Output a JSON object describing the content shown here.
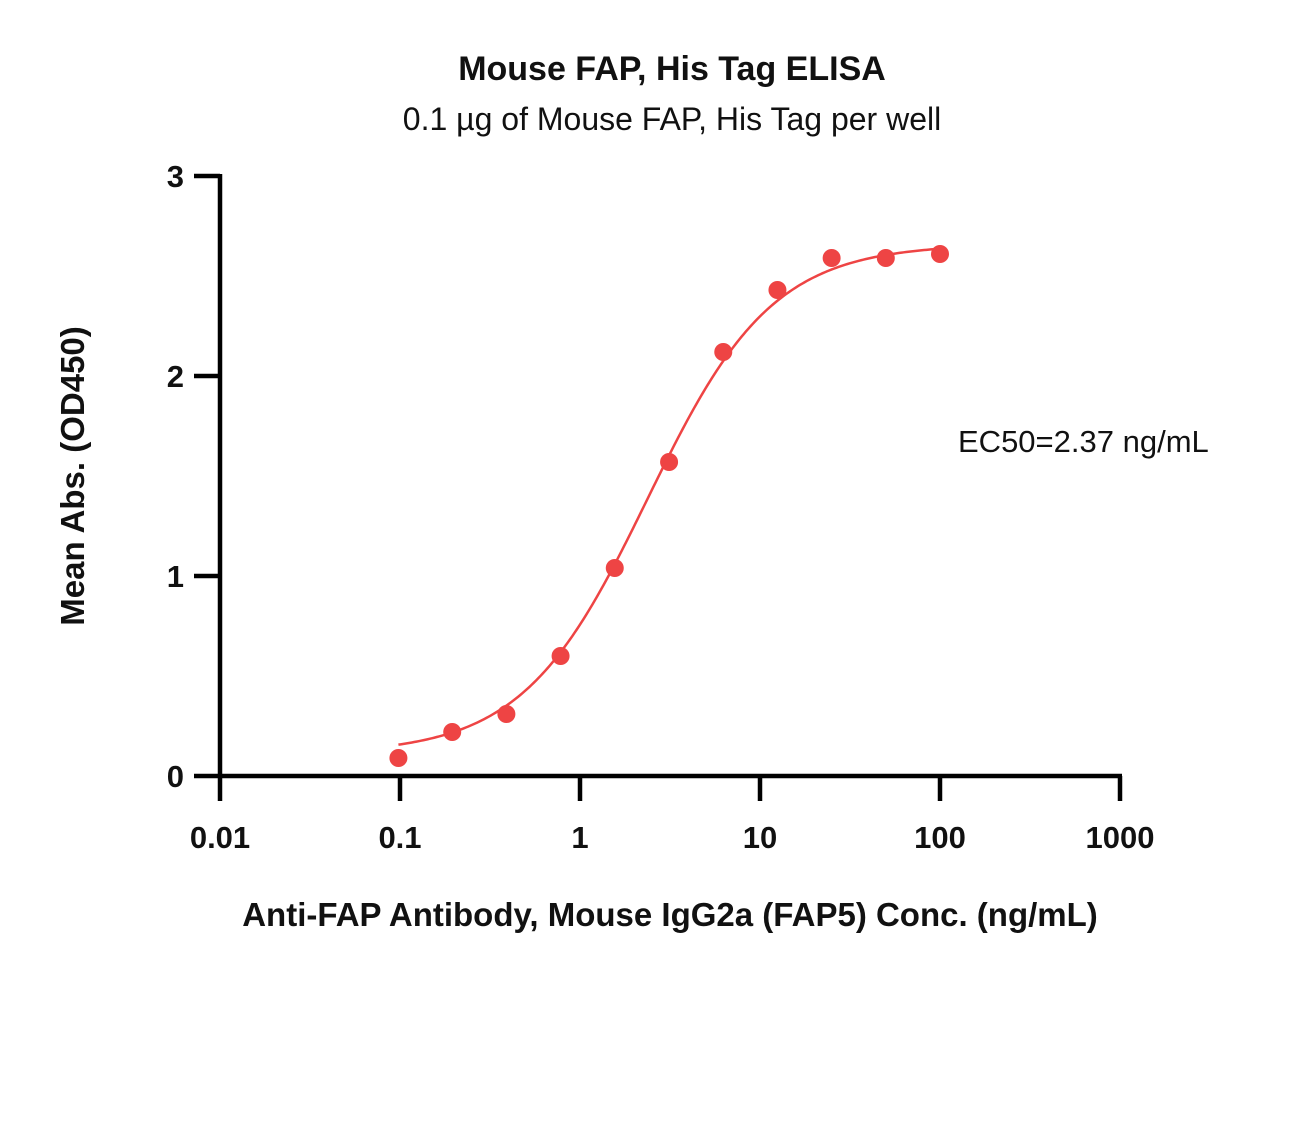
{
  "chart_data": {
    "type": "scatter",
    "title": "Mouse FAP, His Tag ELISA",
    "subtitle": "0.1 µg of Mouse FAP, His Tag per well",
    "xlabel": "Anti-FAP Antibody, Mouse IgG2a (FAP5) Conc. (ng/mL)",
    "ylabel": "Mean Abs. (OD450)",
    "x_scale": "log",
    "xlim": [
      0.01,
      1000
    ],
    "ylim": [
      0,
      3
    ],
    "x_ticks": [
      "0.01",
      "0.1",
      "1",
      "10",
      "100",
      "1000"
    ],
    "y_ticks": [
      "0",
      "1",
      "2",
      "3"
    ],
    "grid": false,
    "color": "#ee4444",
    "annotation": "EC50=2.37 ng/mL",
    "series": [
      {
        "x": [
          0.098,
          0.195,
          0.39,
          0.78,
          1.56,
          3.125,
          6.25,
          12.5,
          25,
          50,
          100
        ],
        "y": [
          0.09,
          0.22,
          0.31,
          0.6,
          1.04,
          1.57,
          2.12,
          2.43,
          2.59,
          2.59,
          2.61
        ]
      }
    ],
    "fit": {
      "type": "4PL",
      "bottom": 0.11,
      "top": 2.66,
      "ec50": 2.37,
      "hill": 1.25,
      "x_range": [
        0.098,
        100
      ]
    }
  }
}
